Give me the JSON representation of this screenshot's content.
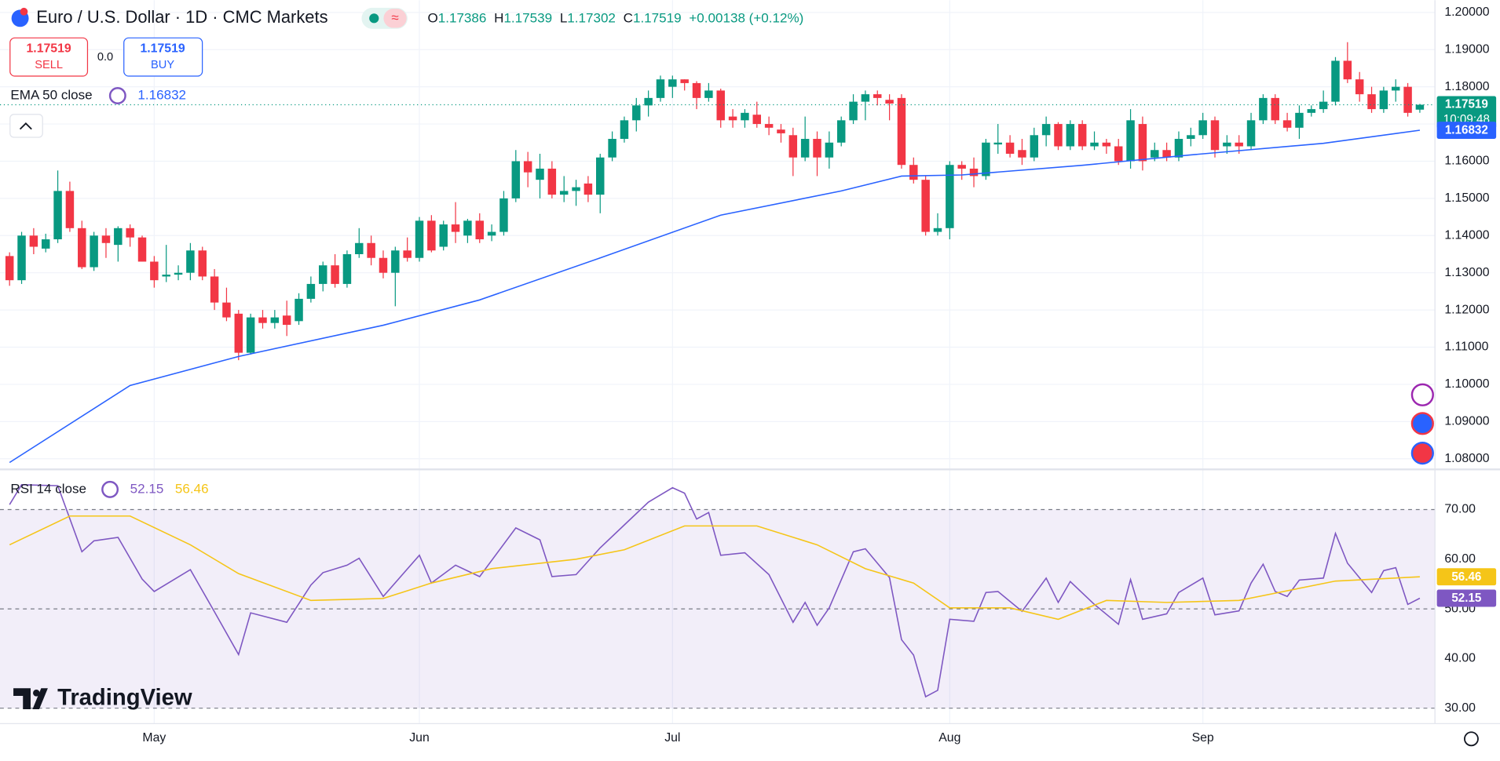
{
  "header": {
    "title": "Euro / U.S. Dollar · 1D · CMC Markets",
    "open_letter": "O",
    "high_letter": "H",
    "low_letter": "L",
    "close_letter": "C",
    "change": "+0.00138 (+0.12%)"
  },
  "ui": {
    "sell_price": "1.17519",
    "sell_label": "SELL",
    "spread": "0.0",
    "buy_price": "1.17519",
    "buy_label": "BUY",
    "countdown": "10:09:48",
    "logo": "TradingView"
  },
  "chart_data": [
    {
      "type": "candlestick",
      "up_color": "#089981",
      "down_color": "#f23645",
      "categories": [
        null,
        null,
        null,
        null,
        null,
        null,
        null,
        null,
        null,
        null,
        null,
        null,
        "May",
        null,
        null,
        null,
        null,
        null,
        null,
        null,
        null,
        null,
        null,
        null,
        null,
        null,
        null,
        null,
        null,
        null,
        null,
        null,
        null,
        null,
        "Jun",
        null,
        null,
        null,
        null,
        null,
        null,
        null,
        null,
        null,
        null,
        null,
        null,
        null,
        null,
        null,
        null,
        null,
        null,
        null,
        null,
        "Jul",
        null,
        null,
        null,
        null,
        null,
        null,
        null,
        null,
        null,
        null,
        null,
        null,
        null,
        null,
        null,
        null,
        null,
        null,
        null,
        null,
        null,
        null,
        "Aug",
        null,
        null,
        null,
        null,
        null,
        null,
        null,
        null,
        null,
        null,
        null,
        null,
        null,
        null,
        null,
        null,
        null,
        null,
        null,
        null,
        "Sep",
        null,
        null,
        null,
        null,
        null,
        null,
        null,
        null,
        null,
        null,
        null,
        null,
        null,
        null,
        null,
        null,
        null,
        null
      ],
      "open": [
        1.1345,
        1.128,
        1.14,
        1.1365,
        1.139,
        1.152,
        1.142,
        1.1315,
        1.14,
        1.1375,
        1.142,
        1.1395,
        1.133,
        1.129,
        1.1295,
        1.13,
        1.136,
        1.129,
        1.122,
        1.119,
        1.1085,
        1.118,
        1.1165,
        1.1185,
        1.117,
        1.123,
        1.127,
        1.132,
        1.127,
        1.135,
        1.138,
        1.134,
        1.13,
        1.136,
        1.134,
        1.144,
        1.137,
        1.143,
        1.14,
        1.144,
        1.14,
        1.141,
        1.15,
        1.16,
        1.155,
        1.158,
        1.151,
        1.152,
        1.154,
        1.151,
        1.161,
        1.166,
        1.171,
        1.175,
        1.177,
        1.18,
        1.182,
        1.181,
        1.177,
        1.179,
        1.172,
        1.171,
        1.1725,
        1.17,
        1.1685,
        1.167,
        1.161,
        1.166,
        1.161,
        1.165,
        1.171,
        1.176,
        1.178,
        1.1765,
        1.177,
        1.159,
        1.155,
        1.141,
        1.142,
        1.159,
        1.158,
        1.156,
        1.1645,
        1.165,
        1.163,
        1.161,
        1.167,
        1.17,
        1.164,
        1.17,
        1.164,
        1.165,
        1.164,
        1.16,
        1.17,
        1.161,
        1.163,
        1.161,
        1.166,
        1.167,
        1.171,
        1.164,
        1.165,
        1.164,
        1.171,
        1.177,
        1.171,
        1.169,
        1.173,
        1.174,
        1.176,
        1.187,
        1.182,
        1.178,
        1.174,
        1.179,
        1.18,
        1.17386
      ],
      "high": [
        1.1355,
        1.141,
        1.142,
        1.1405,
        1.1575,
        1.1545,
        1.144,
        1.141,
        1.142,
        1.1425,
        1.143,
        1.14,
        1.1345,
        1.1375,
        1.132,
        1.138,
        1.137,
        1.131,
        1.126,
        1.12,
        1.119,
        1.12,
        1.12,
        1.1225,
        1.1245,
        1.129,
        1.133,
        1.135,
        1.136,
        1.142,
        1.14,
        1.136,
        1.137,
        1.1395,
        1.145,
        1.1455,
        1.144,
        1.149,
        1.1445,
        1.146,
        1.143,
        1.152,
        1.163,
        1.1625,
        1.162,
        1.16,
        1.156,
        1.155,
        1.156,
        1.162,
        1.168,
        1.172,
        1.177,
        1.179,
        1.183,
        1.183,
        1.182,
        1.1815,
        1.181,
        1.1795,
        1.174,
        1.174,
        1.176,
        1.172,
        1.17,
        1.169,
        1.172,
        1.168,
        1.168,
        1.172,
        1.178,
        1.179,
        1.179,
        1.178,
        1.178,
        1.161,
        1.156,
        1.146,
        1.16,
        1.16,
        1.161,
        1.166,
        1.17,
        1.167,
        1.166,
        1.169,
        1.172,
        1.1705,
        1.171,
        1.171,
        1.168,
        1.166,
        1.166,
        1.174,
        1.172,
        1.165,
        1.165,
        1.168,
        1.169,
        1.173,
        1.172,
        1.167,
        1.167,
        1.173,
        1.178,
        1.178,
        1.173,
        1.175,
        1.175,
        1.179,
        1.188,
        1.192,
        1.184,
        1.18,
        1.18,
        1.182,
        1.181,
        1.17539
      ],
      "low": [
        1.1265,
        1.127,
        1.135,
        1.1355,
        1.138,
        1.141,
        1.131,
        1.1305,
        1.134,
        1.133,
        1.137,
        1.133,
        1.126,
        1.1275,
        1.128,
        1.128,
        1.128,
        1.12,
        1.117,
        1.1065,
        1.108,
        1.115,
        1.115,
        1.113,
        1.116,
        1.122,
        1.125,
        1.126,
        1.126,
        1.134,
        1.132,
        1.1285,
        1.121,
        1.133,
        1.133,
        1.1355,
        1.136,
        1.138,
        1.138,
        1.138,
        1.1385,
        1.14,
        1.149,
        1.153,
        1.15,
        1.15,
        1.149,
        1.148,
        1.149,
        1.146,
        1.16,
        1.165,
        1.168,
        1.172,
        1.176,
        1.177,
        1.179,
        1.174,
        1.176,
        1.169,
        1.169,
        1.169,
        1.169,
        1.167,
        1.165,
        1.156,
        1.16,
        1.156,
        1.158,
        1.164,
        1.17,
        1.171,
        1.175,
        1.171,
        1.158,
        1.154,
        1.14,
        1.14,
        1.139,
        1.155,
        1.153,
        1.155,
        1.162,
        1.161,
        1.159,
        1.16,
        1.164,
        1.163,
        1.163,
        1.163,
        1.163,
        1.162,
        1.159,
        1.158,
        1.1575,
        1.16,
        1.16,
        1.16,
        1.164,
        1.166,
        1.161,
        1.162,
        1.162,
        1.163,
        1.17,
        1.17,
        1.168,
        1.166,
        1.172,
        1.173,
        1.175,
        1.181,
        1.176,
        1.173,
        1.173,
        1.176,
        1.172,
        1.17302
      ],
      "close": [
        1.128,
        1.14,
        1.137,
        1.139,
        1.152,
        1.142,
        1.1315,
        1.14,
        1.138,
        1.142,
        1.1395,
        1.133,
        1.128,
        1.1295,
        1.13,
        1.136,
        1.129,
        1.122,
        1.118,
        1.1085,
        1.118,
        1.1165,
        1.118,
        1.116,
        1.123,
        1.127,
        1.132,
        1.127,
        1.135,
        1.138,
        1.134,
        1.13,
        1.136,
        1.134,
        1.144,
        1.136,
        1.143,
        1.141,
        1.144,
        1.139,
        1.141,
        1.15,
        1.16,
        1.157,
        1.158,
        1.151,
        1.152,
        1.153,
        1.151,
        1.161,
        1.166,
        1.171,
        1.175,
        1.177,
        1.182,
        1.182,
        1.181,
        1.177,
        1.179,
        1.171,
        1.171,
        1.173,
        1.17,
        1.169,
        1.1675,
        1.161,
        1.166,
        1.161,
        1.165,
        1.171,
        1.176,
        1.178,
        1.177,
        1.1755,
        1.159,
        1.155,
        1.141,
        1.142,
        1.159,
        1.158,
        1.156,
        1.165,
        1.165,
        1.162,
        1.161,
        1.167,
        1.17,
        1.164,
        1.17,
        1.164,
        1.165,
        1.164,
        1.16,
        1.171,
        1.16,
        1.163,
        1.161,
        1.166,
        1.167,
        1.171,
        1.163,
        1.165,
        1.164,
        1.171,
        1.177,
        1.171,
        1.169,
        1.173,
        1.174,
        1.176,
        1.187,
        1.182,
        1.178,
        1.174,
        1.179,
        1.18,
        1.173,
        1.17519
      ],
      "series": [
        {
          "name": "EMA 50 close",
          "color": "#2962ff",
          "x": [
            0,
            10,
            19,
            31,
            39,
            49,
            59,
            69,
            74,
            79,
            89,
            98,
            109,
            117
          ],
          "values": [
            1.079,
            1.0997,
            1.1075,
            1.1159,
            1.1227,
            1.134,
            1.1455,
            1.152,
            1.156,
            1.1563,
            1.1589,
            1.1617,
            1.1648,
            1.16832
          ]
        }
      ],
      "ylim": [
        1.0774,
        1.2033
      ],
      "yticks": [
        {
          "value": 1.2,
          "label": "1.20000"
        },
        {
          "value": 1.19,
          "label": "1.19000"
        },
        {
          "value": 1.18,
          "label": "1.18000"
        },
        {
          "value": 1.17,
          "label": "1.17000"
        },
        {
          "value": 1.16,
          "label": "1.16000"
        },
        {
          "value": 1.15,
          "label": "1.15000"
        },
        {
          "value": 1.14,
          "label": "1.14000"
        },
        {
          "value": 1.13,
          "label": "1.13000"
        },
        {
          "value": 1.12,
          "label": "1.12000"
        },
        {
          "value": 1.11,
          "label": "1.11000"
        },
        {
          "value": 1.1,
          "label": "1.10000"
        },
        {
          "value": 1.09,
          "label": "1.09000"
        },
        {
          "value": 1.08,
          "label": "1.08000"
        }
      ],
      "grid": true
    },
    {
      "type": "line",
      "series": [
        {
          "name": "RSI 14 close",
          "color": "#7e57c2",
          "x": [
            0,
            1,
            4,
            6,
            7,
            9,
            11,
            12,
            15,
            17,
            19,
            20,
            23,
            25,
            26,
            28,
            29,
            31,
            34,
            35,
            37,
            39,
            42,
            44,
            45,
            47,
            49,
            51,
            53,
            55,
            56,
            57,
            58,
            59,
            61,
            63,
            65,
            66,
            67,
            68,
            70,
            71,
            73,
            74,
            75,
            76,
            77,
            78,
            80,
            81,
            82,
            84,
            86,
            87,
            88,
            90,
            92,
            93,
            94,
            96,
            97,
            99,
            100,
            102,
            103,
            104,
            105,
            106,
            107,
            109,
            110,
            111,
            113,
            114,
            115,
            116,
            117
          ],
          "values": [
            71.0,
            75.0,
            74.8,
            61.5,
            63.7,
            64.4,
            56.0,
            53.5,
            57.9,
            49.4,
            40.8,
            49.2,
            47.3,
            54.8,
            57.3,
            58.8,
            60.2,
            52.5,
            60.8,
            55.2,
            58.8,
            56.5,
            66.3,
            63.9,
            56.5,
            56.9,
            62.3,
            66.9,
            71.5,
            74.4,
            73.3,
            68.1,
            69.4,
            60.8,
            61.3,
            56.9,
            47.3,
            51.3,
            46.7,
            50.2,
            61.5,
            62.1,
            56.3,
            43.8,
            40.7,
            32.3,
            33.6,
            47.9,
            47.5,
            53.3,
            53.5,
            49.5,
            56.2,
            51.3,
            55.5,
            50.9,
            46.9,
            55.9,
            47.9,
            49.0,
            53.3,
            56.2,
            48.8,
            49.6,
            55.2,
            59.0,
            53.5,
            52.5,
            55.8,
            56.2,
            65.2,
            59.2,
            53.3,
            57.7,
            58.3,
            50.9,
            52.15
          ]
        },
        {
          "color": "#f5c518",
          "x": [
            0,
            5,
            10,
            15,
            19,
            25,
            31,
            35,
            40,
            47,
            51,
            56,
            62,
            67,
            71,
            75,
            78,
            83,
            87,
            91,
            96,
            102,
            110,
            117
          ],
          "values": [
            62.9,
            68.7,
            68.7,
            62.9,
            57.1,
            51.7,
            52.1,
            55.2,
            58.1,
            60.0,
            61.9,
            66.7,
            66.7,
            62.9,
            58.1,
            55.2,
            50.2,
            50.2,
            47.9,
            51.7,
            51.3,
            51.7,
            55.6,
            56.46
          ]
        }
      ],
      "band": [
        30,
        70
      ],
      "band_color": "#7e57c2",
      "dashed_levels": [
        70,
        50,
        30
      ],
      "ylim": [
        26.9,
        77.9
      ],
      "yticks": [
        {
          "value": 70,
          "label": "70.00"
        },
        {
          "value": 60,
          "label": "60.00"
        },
        {
          "value": 50,
          "label": "50.00"
        },
        {
          "value": 40,
          "label": "40.00"
        },
        {
          "value": 30,
          "label": "30.00"
        }
      ]
    }
  ]
}
